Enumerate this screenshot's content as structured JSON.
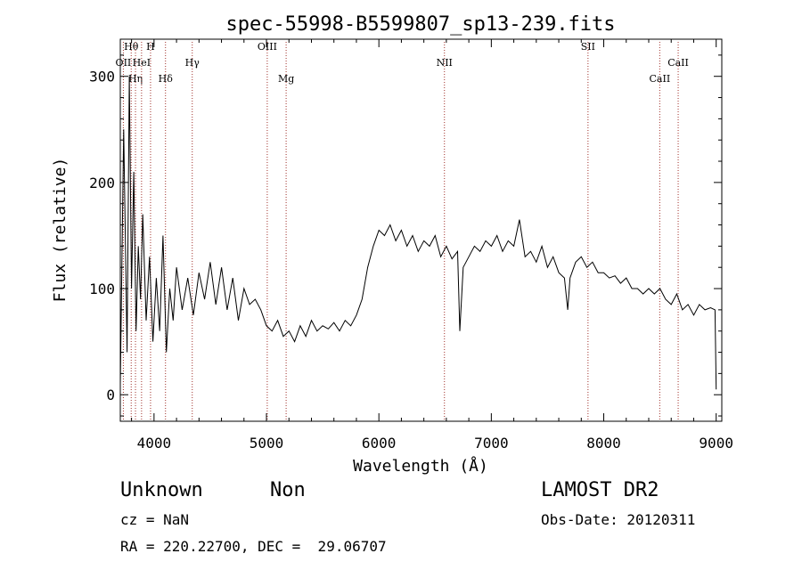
{
  "chart_data": {
    "type": "line",
    "title": "spec-55998-B5599807_sp13-239.fits",
    "xlabel": "Wavelength (Å)",
    "ylabel": "Flux (relative)",
    "xlim": [
      3700,
      9050
    ],
    "ylim": [
      -25,
      335
    ],
    "xticks": [
      4000,
      5000,
      6000,
      7000,
      8000,
      9000
    ],
    "yticks": [
      0,
      100,
      200,
      300
    ],
    "grid": false,
    "line_color": "#000000",
    "marker_color": "#a0302a",
    "series": [
      {
        "x": [
          3700,
          3730,
          3760,
          3780,
          3800,
          3820,
          3840,
          3860,
          3880,
          3900,
          3930,
          3960,
          3990,
          4020,
          4050,
          4080,
          4110,
          4140,
          4170,
          4200,
          4250,
          4300,
          4350,
          4400,
          4450,
          4500,
          4550,
          4600,
          4650,
          4700,
          4750,
          4800,
          4850,
          4900,
          4950,
          5000,
          5050,
          5100,
          5150,
          5200,
          5250,
          5300,
          5350,
          5400,
          5450,
          5500,
          5550,
          5600,
          5650,
          5700,
          5750,
          5800,
          5850,
          5900,
          5950,
          6000,
          6050,
          6100,
          6150,
          6200,
          6250,
          6300,
          6350,
          6400,
          6450,
          6500,
          6550,
          6600,
          6650,
          6700,
          6720,
          6750,
          6800,
          6850,
          6900,
          6950,
          7000,
          7050,
          7100,
          7150,
          7200,
          7250,
          7300,
          7350,
          7400,
          7450,
          7500,
          7550,
          7600,
          7650,
          7680,
          7700,
          7750,
          7800,
          7850,
          7900,
          7950,
          8000,
          8050,
          8100,
          8150,
          8200,
          8250,
          8300,
          8350,
          8400,
          8450,
          8500,
          8550,
          8600,
          8650,
          8700,
          8750,
          8800,
          8850,
          8900,
          8950,
          8990,
          9000
        ],
        "y": [
          10,
          250,
          40,
          300,
          100,
          210,
          60,
          140,
          90,
          170,
          70,
          130,
          50,
          110,
          60,
          150,
          40,
          100,
          70,
          120,
          80,
          110,
          75,
          115,
          90,
          125,
          85,
          120,
          80,
          110,
          70,
          100,
          85,
          90,
          80,
          65,
          60,
          70,
          55,
          60,
          50,
          65,
          55,
          70,
          60,
          65,
          62,
          68,
          60,
          70,
          65,
          75,
          90,
          120,
          140,
          155,
          150,
          160,
          145,
          155,
          140,
          150,
          135,
          145,
          140,
          150,
          130,
          140,
          128,
          135,
          60,
          120,
          130,
          140,
          135,
          145,
          140,
          150,
          135,
          145,
          140,
          165,
          130,
          135,
          125,
          140,
          120,
          130,
          115,
          110,
          80,
          110,
          125,
          130,
          120,
          125,
          115,
          115,
          110,
          112,
          105,
          110,
          100,
          100,
          95,
          100,
          95,
          100,
          90,
          85,
          95,
          80,
          85,
          75,
          85,
          80,
          82,
          80,
          5
        ]
      }
    ],
    "line_markers": [
      {
        "label": "Hθ",
        "x": 3797
      },
      {
        "label": "OII",
        "x": 3727
      },
      {
        "label": "Hη",
        "x": 3835
      },
      {
        "label": "HeI",
        "x": 3889
      },
      {
        "label": "H",
        "x": 3969
      },
      {
        "label": "Hδ",
        "x": 4102
      },
      {
        "label": "Hγ",
        "x": 4340
      },
      {
        "label": "OIII",
        "x": 5007
      },
      {
        "label": "Mg",
        "x": 5175
      },
      {
        "label": "NII",
        "x": 6583
      },
      {
        "label": "SII",
        "x": 7860
      },
      {
        "label": "CaII",
        "x": 8498
      },
      {
        "label": "CaII",
        "x": 8662
      }
    ]
  },
  "info": {
    "class": "Unknown",
    "subclass": "Non",
    "survey": "LAMOST DR2",
    "cz": "cz = NaN",
    "obs_date": "Obs-Date: 20120311",
    "radec": "RA = 220.22700, DEC =  29.06707"
  }
}
